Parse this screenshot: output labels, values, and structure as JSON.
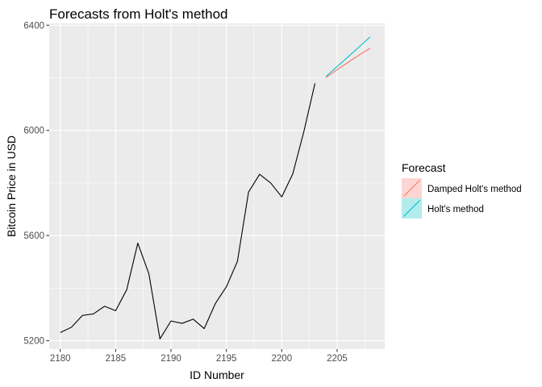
{
  "chart_data": {
    "type": "line",
    "title": "Forecasts from Holt's method",
    "xlabel": "ID Number",
    "ylabel": "Bitcoin Price in USD",
    "xlim": [
      2179.0,
      2209.3
    ],
    "ylim": [
      5168,
      6407
    ],
    "x_ticks": [
      2180,
      2185,
      2190,
      2195,
      2200,
      2205
    ],
    "y_ticks": [
      5200,
      5600,
      6000,
      6400
    ],
    "grid": true,
    "legend": {
      "title": "Forecast",
      "position": "right",
      "entries": [
        {
          "label": "Damped Holt's method",
          "color": "#F8766D"
        },
        {
          "label": "Holt's method",
          "color": "#00BFC4"
        }
      ]
    },
    "series": [
      {
        "color": "#000000",
        "x": [
          2180,
          2181,
          2182,
          2183,
          2184,
          2185,
          2186,
          2187,
          2188,
          2189,
          2190,
          2191,
          2192,
          2193,
          2194,
          2195,
          2196,
          2197,
          2198,
          2199,
          2200,
          2201,
          2202,
          2203
        ],
        "y": [
          5231,
          5251,
          5296,
          5302,
          5331,
          5314,
          5394,
          5571,
          5455,
          5207,
          5275,
          5266,
          5282,
          5246,
          5341,
          5405,
          5502,
          5765,
          5833,
          5800,
          5747,
          5835,
          5996,
          6179
        ]
      },
      {
        "name": "Damped Holt's method",
        "color": "#F8766D",
        "x": [
          2204,
          2205,
          2206,
          2207,
          2208
        ],
        "y": [
          6201,
          6231,
          6259,
          6287,
          6313
        ]
      },
      {
        "name": "Holt's method",
        "color": "#00BFC4",
        "x": [
          2204,
          2205,
          2206,
          2207,
          2208
        ],
        "y": [
          6205,
          6243,
          6280,
          6318,
          6356
        ]
      }
    ]
  }
}
